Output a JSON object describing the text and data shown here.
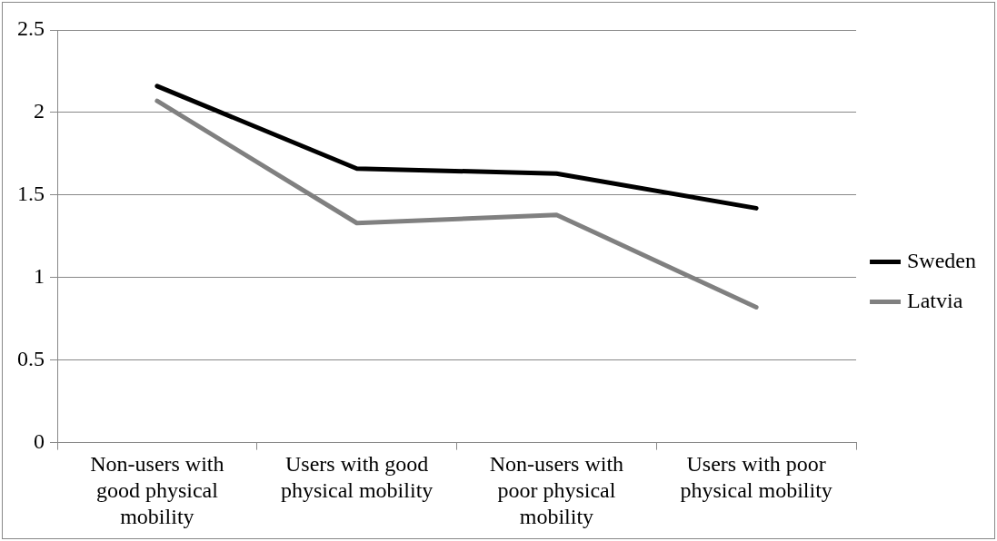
{
  "chart_data": {
    "type": "line",
    "categories": [
      "Non-users with good physical mobility",
      "Users with good physical mobility",
      "Non-users with poor physical mobility",
      "Users with poor physical mobility"
    ],
    "series": [
      {
        "name": "Sweden",
        "color": "#000000",
        "values": [
          2.16,
          1.66,
          1.63,
          1.42
        ]
      },
      {
        "name": "Latvia",
        "color": "#808080",
        "values": [
          2.07,
          1.33,
          1.38,
          0.82
        ]
      }
    ],
    "ylim": [
      0,
      2.5
    ],
    "yticks": [
      0,
      0.5,
      1,
      1.5,
      2,
      2.5
    ],
    "grid": "y",
    "legend": "right",
    "marker": "none",
    "line_style": "solid"
  }
}
